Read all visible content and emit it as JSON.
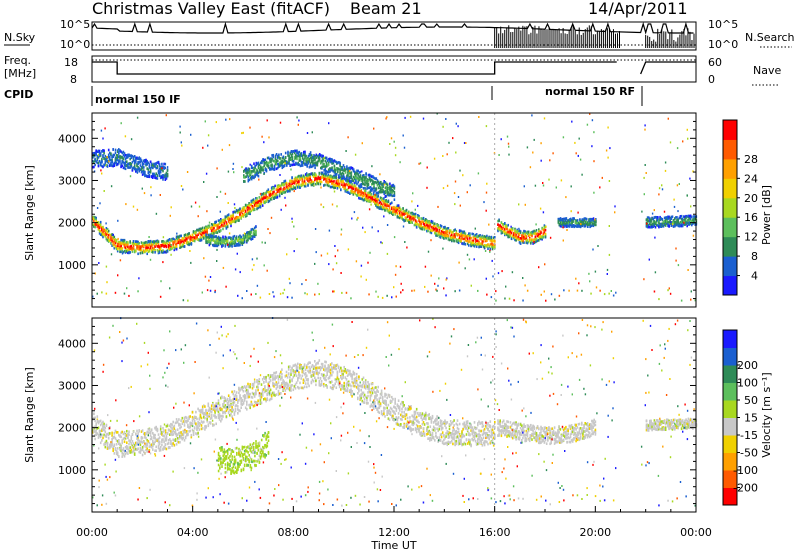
{
  "header": {
    "title": "Christmas Valley East (fitACF)",
    "beam": "Beam 21",
    "date": "14/Apr/2011"
  },
  "status_panels": {
    "nsky_label": "N.Sky",
    "nsearch_label": "N.Search",
    "freq_label": "Freq.",
    "freq_unit": "[MHz]",
    "nave_label": "Nave",
    "cpid_label": "CPID",
    "left_ticks_top": [
      "10^5",
      "10^0"
    ],
    "right_ticks_top": [
      "10^5",
      "10^0"
    ],
    "left_ticks_freq": [
      "18",
      "8"
    ],
    "right_ticks_nave": [
      "60",
      "0"
    ],
    "cpid_segments": [
      {
        "label": "normal 150 IF",
        "start_hour": 0,
        "end_hour": 16
      },
      {
        "label": "normal 150 RF",
        "start_hour": 16,
        "end_hour": 22
      }
    ]
  },
  "chart_data": [
    {
      "type": "heatmap",
      "name": "power",
      "ylabel": "Slant Range [km]",
      "xlabel": "",
      "yticks": [
        1000,
        2000,
        3000,
        4000
      ],
      "ylim": [
        0,
        4600
      ],
      "xlim": [
        0,
        24
      ],
      "colorbar": {
        "label": "Power [dB]",
        "ticks": [
          "4",
          "8",
          "12",
          "16",
          "20",
          "24",
          "28"
        ],
        "colors": [
          "#1a1aff",
          "#1a5fd0",
          "#2e8b57",
          "#5cbf5c",
          "#a8d820",
          "#f0d000",
          "#ffa000",
          "#ff5a00",
          "#ff0000"
        ]
      },
      "bands": [
        {
          "x": [
            0.0,
            1.0,
            2.0,
            3.0,
            4.0,
            5.0,
            6.0,
            7.0,
            8.0,
            9.0,
            10.0,
            11.0,
            12.0,
            13.0,
            14.0,
            15.0,
            16.0
          ],
          "y": [
            2050,
            1450,
            1400,
            1450,
            1650,
            1900,
            2250,
            2650,
            2950,
            3050,
            2900,
            2600,
            2300,
            2000,
            1750,
            1600,
            1500
          ],
          "level": 8,
          "width": 150
        },
        {
          "x": [
            16.1,
            16.5,
            17.0,
            17.5,
            18.0
          ],
          "y": [
            1950,
            1800,
            1650,
            1650,
            1800
          ],
          "level": 8,
          "width": 150
        },
        {
          "x": [
            4.5,
            5.0,
            5.5,
            6.0,
            6.5
          ],
          "y": [
            1600,
            1550,
            1550,
            1600,
            1800
          ],
          "level": 3,
          "width": 120
        },
        {
          "x": [
            0.0,
            1.0,
            2.0,
            3.0
          ],
          "y": [
            3500,
            3550,
            3300,
            3200
          ],
          "level": 1,
          "width": 200
        },
        {
          "x": [
            6.0,
            7.0,
            8.0,
            9.0,
            10.0,
            11.0,
            12.0
          ],
          "y": [
            3100,
            3400,
            3550,
            3450,
            3200,
            2950,
            2700
          ],
          "level": 2,
          "width": 180
        },
        {
          "x": [
            18.5,
            20.0
          ],
          "y": [
            2000,
            2000
          ],
          "level": 2,
          "width": 100
        },
        {
          "x": [
            22.0,
            24.0
          ],
          "y": [
            2000,
            2050
          ],
          "level": 2,
          "width": 120
        }
      ]
    },
    {
      "type": "heatmap",
      "name": "velocity",
      "ylabel": "Slant Range [km]",
      "xlabel": "Time UT",
      "yticks": [
        1000,
        2000,
        3000,
        4000
      ],
      "ylim": [
        0,
        4600
      ],
      "xlim": [
        0,
        24
      ],
      "xticks": [
        "00:00",
        "04:00",
        "08:00",
        "12:00",
        "16:00",
        "20:00",
        "00:00"
      ],
      "colorbar": {
        "label": "Velocity [m s⁻¹]",
        "ticks": [
          "-200",
          "-100",
          "-50",
          "-15",
          "15",
          "50",
          "100",
          "200"
        ],
        "colors": [
          "#ff0000",
          "#ff5a00",
          "#ffa000",
          "#f0d000",
          "#c8c8c8",
          "#a8d820",
          "#5cbf5c",
          "#2e8b57",
          "#1a5fd0",
          "#1a1aff"
        ]
      },
      "bands": [
        {
          "x": [
            0.0,
            1.0,
            2.0,
            3.0,
            4.0,
            5.0,
            6.0,
            7.0,
            8.0,
            9.0,
            10.0,
            11.0,
            12.0,
            13.0,
            14.0,
            15.0,
            16.0
          ],
          "y": [
            2050,
            1600,
            1650,
            1800,
            2100,
            2400,
            2700,
            2950,
            3200,
            3300,
            3150,
            2800,
            2400,
            2100,
            1900,
            1850,
            1850
          ],
          "level": 4,
          "width": 300
        },
        {
          "x": [
            5.0,
            5.5,
            6.0,
            6.5,
            7.0
          ],
          "y": [
            1250,
            1200,
            1250,
            1400,
            1650
          ],
          "level": 5,
          "width": 300
        },
        {
          "x": [
            16.1,
            17.0,
            18.0,
            19.0,
            20.0
          ],
          "y": [
            2000,
            1900,
            1800,
            1850,
            2000
          ],
          "level": 4,
          "width": 200
        },
        {
          "x": [
            22.0,
            24.0
          ],
          "y": [
            2050,
            2100
          ],
          "level": 4,
          "width": 120
        }
      ]
    }
  ]
}
